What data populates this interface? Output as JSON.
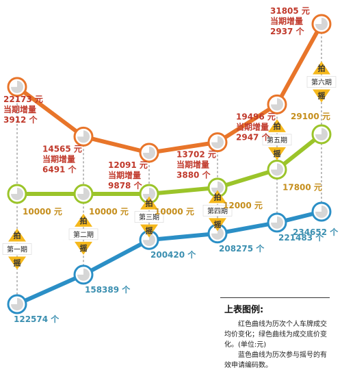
{
  "chart_data": {
    "type": "line",
    "periods": [
      "第一期",
      "第二期",
      "第三期",
      "第四期",
      "第五期",
      "第六期"
    ],
    "series": [
      {
        "key": "red",
        "color": "#e8752a",
        "values": [
          22173,
          14565,
          12091,
          13702,
          19496,
          31805
        ],
        "value_labels": [
          "22173 元",
          "14565 元",
          "12091 元",
          "13702 元",
          "19496 元",
          "31805 元"
        ],
        "increment_labels": [
          "3912 个",
          "6491 个",
          "9878 个",
          "3880 个",
          "2947 个",
          "2937 个"
        ],
        "increment_prefix": "当期增量"
      },
      {
        "key": "green",
        "color": "#9bc42a",
        "values": [
          10000,
          10000,
          10000,
          12000,
          17800,
          29100
        ],
        "value_labels": [
          "10000 元",
          "10000 元",
          "10000 元",
          "12000 元",
          "17800 元",
          "29100 元"
        ]
      },
      {
        "key": "blue",
        "color": "#2b8fc6",
        "values": [
          122574,
          158389,
          200420,
          208275,
          221483,
          234652
        ],
        "value_labels": [
          "122574 个",
          "158389 个",
          "200420 个",
          "208275 个",
          "221483 个",
          "234652 个"
        ]
      }
    ],
    "badge_top": "拍",
    "badge_bottom": "摇"
  },
  "legend": {
    "title": "上表图例:",
    "line1": "红色曲线为历次个人车牌成交均价变化；绿色曲线为成交底价变化。(单位:元)",
    "line2": "蓝色曲线为历次参与摇号的有效申请编码数。"
  },
  "colors": {
    "red_text": "#c0392b",
    "green_text": "#c58e1c",
    "blue_text": "#3b8fb0",
    "badge": "#f5b81c"
  }
}
